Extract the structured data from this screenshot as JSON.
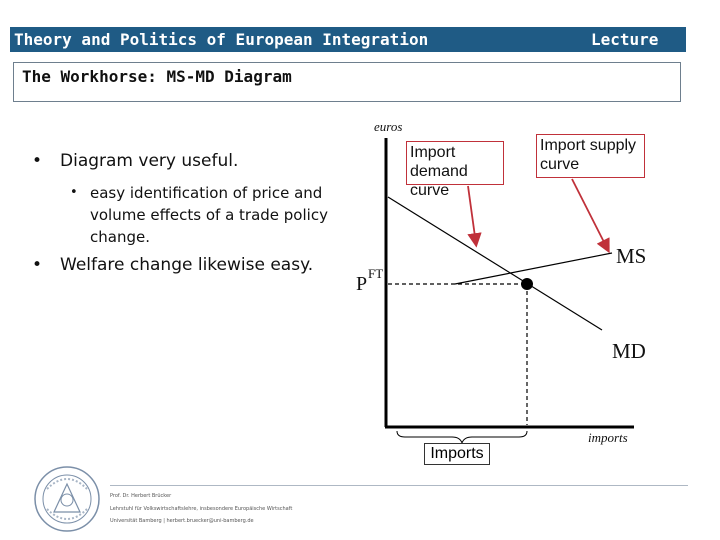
{
  "header": {
    "title": "Theory and Politics of European Integration",
    "lecture_label": "Lecture"
  },
  "slide": {
    "title": "The Workhorse: MS-MD Diagram"
  },
  "bullets": [
    {
      "level": 1,
      "text": "Diagram very useful."
    },
    {
      "level": 2,
      "text": "easy identification of price and volume effects of a trade policy change."
    },
    {
      "level": 1,
      "text": "Welfare change likewise easy."
    }
  ],
  "diagram": {
    "y_axis_label": "euros",
    "x_axis_label": "imports",
    "price_label": "P",
    "price_superscript": "FT",
    "ms_label": "MS",
    "md_label": "MD",
    "import_demand_label": "Import demand curve",
    "import_supply_label": "Import supply curve",
    "imports_box_label": "Imports",
    "callout_color": "#c0313a"
  },
  "footer": {
    "line1": "Prof. Dr. Herbert Brücker",
    "line2": "Lehrstuhl für Volkswirtschaftslehre, insbesondere Europäische Wirtschaft",
    "line3": "Universität Bamberg | herbert.bruecker@uni-bamberg.de"
  }
}
